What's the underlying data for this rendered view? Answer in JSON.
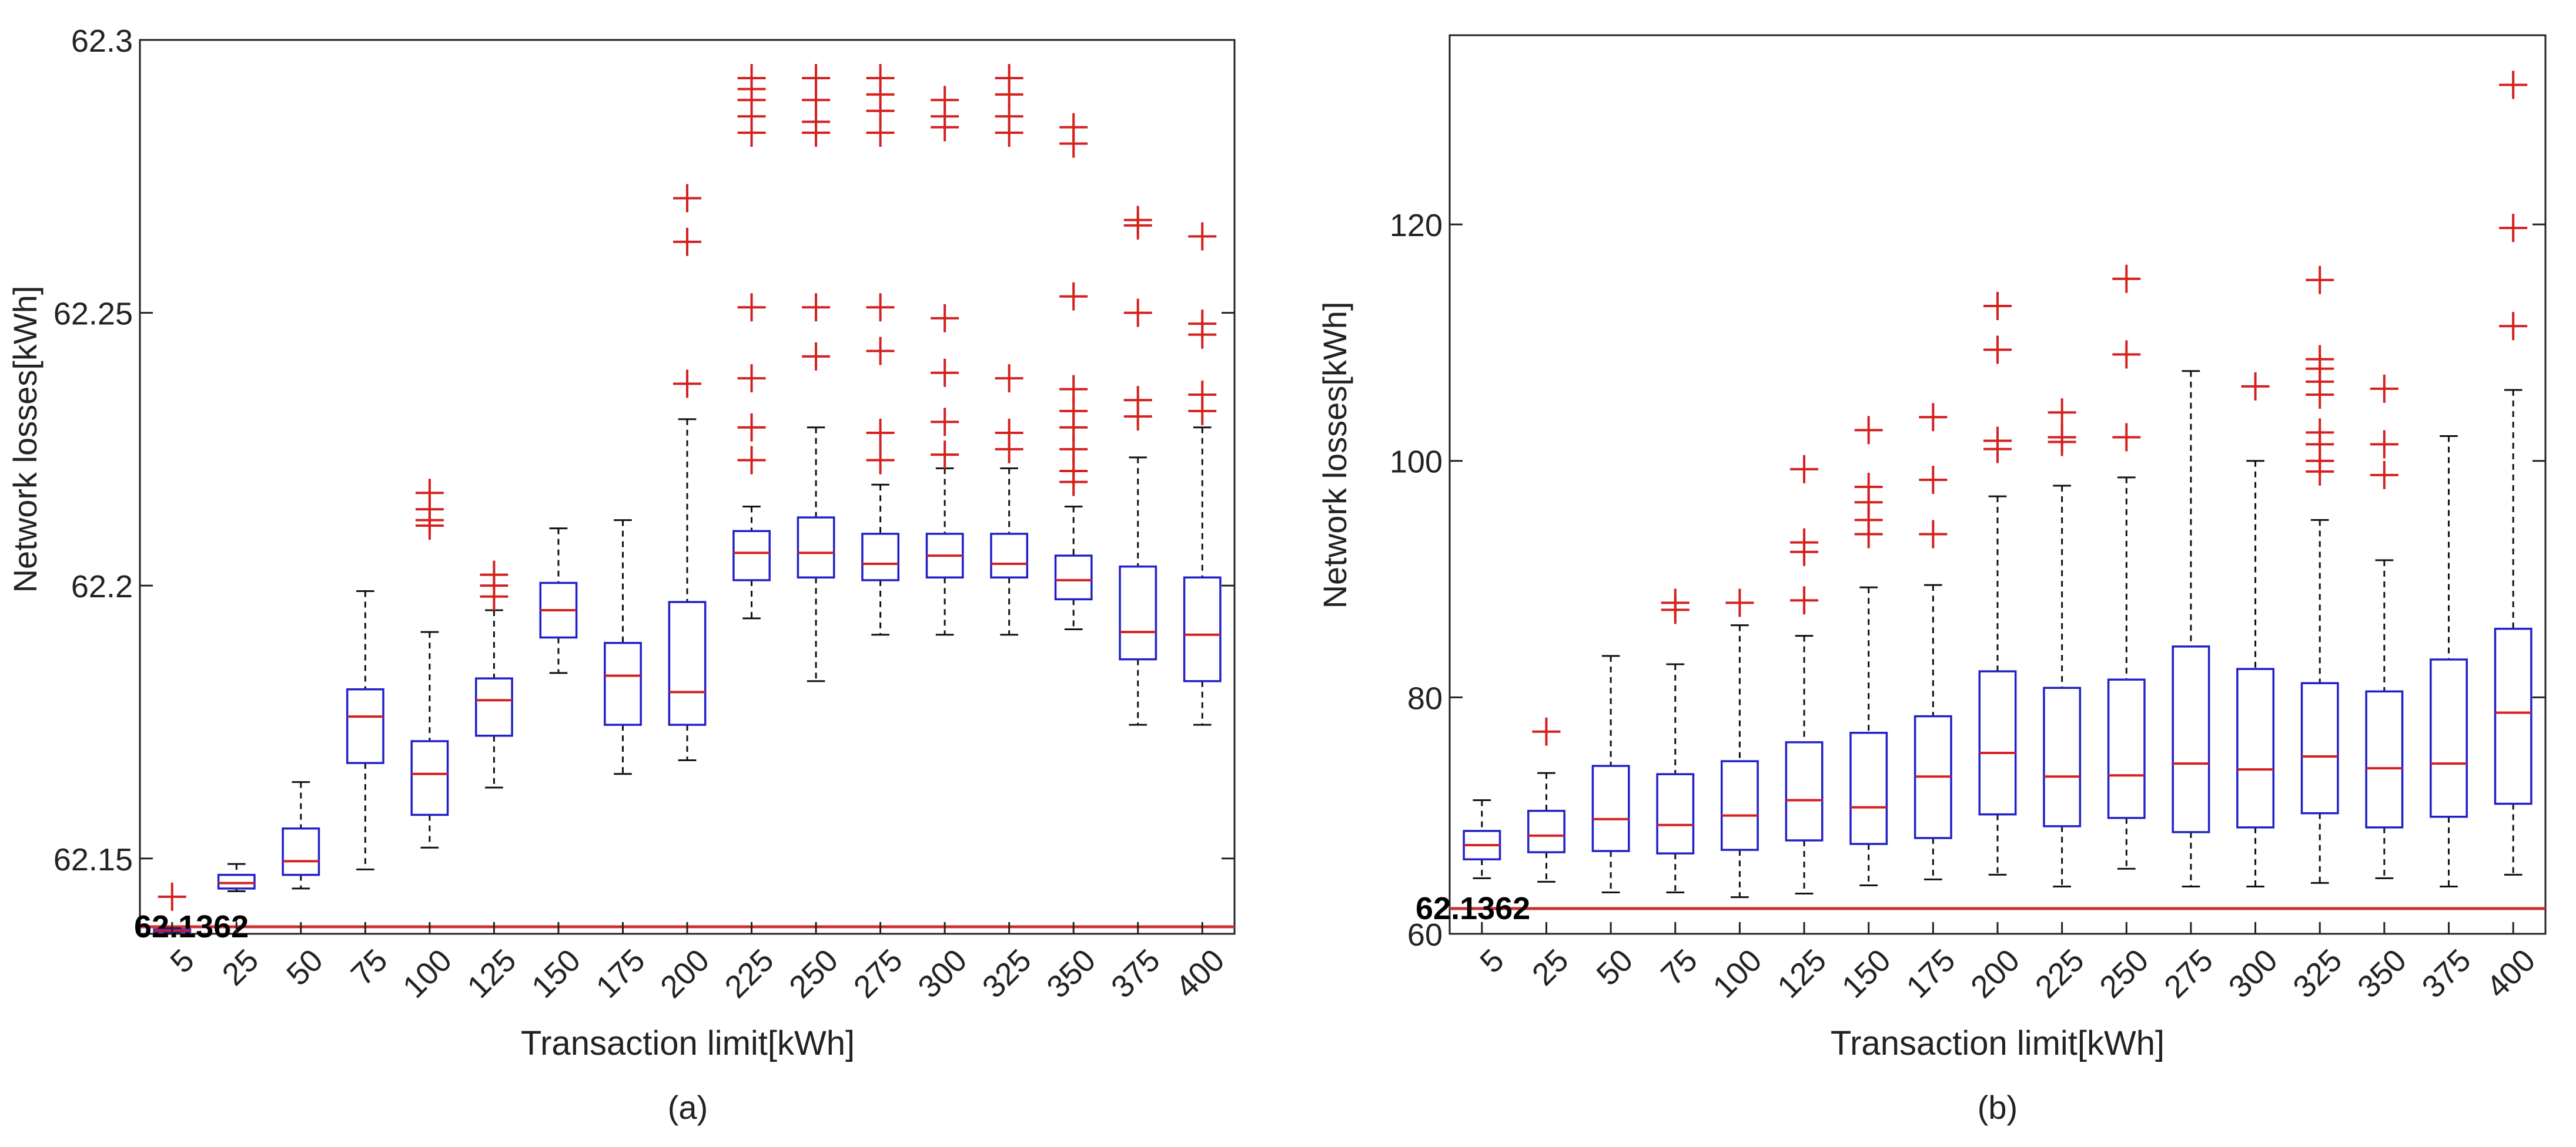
{
  "chart_data": [
    {
      "type": "boxplot",
      "panel_label": "(a)",
      "xlabel": "Transaction limit[kWh]",
      "ylabel": "Network losses[kWh]",
      "ylim": [
        62.1362,
        62.3
      ],
      "yticks": [
        "62.15",
        "62.2",
        "62.25",
        "62.3"
      ],
      "ytick_values": [
        62.15,
        62.2,
        62.25,
        62.3
      ],
      "categories": [
        "5",
        "25",
        "50",
        "75",
        "100",
        "125",
        "150",
        "175",
        "200",
        "225",
        "250",
        "275",
        "300",
        "325",
        "350",
        "375",
        "400"
      ],
      "baseline": {
        "value": 62.1362,
        "label": "62.1362"
      },
      "boxes": [
        {
          "lw": 62.1365,
          "q1": 62.1366,
          "med": 62.1368,
          "q3": 62.137,
          "uw": 62.1372,
          "outliers": [
            62.143
          ]
        },
        {
          "lw": 62.144,
          "q1": 62.1445,
          "med": 62.1455,
          "q3": 62.147,
          "uw": 62.149,
          "outliers": []
        },
        {
          "lw": 62.1445,
          "q1": 62.147,
          "med": 62.1495,
          "q3": 62.1555,
          "uw": 62.164,
          "outliers": []
        },
        {
          "lw": 62.148,
          "q1": 62.1675,
          "med": 62.176,
          "q3": 62.181,
          "uw": 62.199,
          "outliers": []
        },
        {
          "lw": 62.152,
          "q1": 62.158,
          "med": 62.1655,
          "q3": 62.1715,
          "uw": 62.1915,
          "outliers": [
            62.211,
            62.212,
            62.214,
            62.217
          ]
        },
        {
          "lw": 62.163,
          "q1": 62.1725,
          "med": 62.179,
          "q3": 62.183,
          "uw": 62.1955,
          "outliers": [
            62.198,
            62.2,
            62.202
          ]
        },
        {
          "lw": 62.184,
          "q1": 62.1905,
          "med": 62.1955,
          "q3": 62.2005,
          "uw": 62.2105,
          "outliers": []
        },
        {
          "lw": 62.1655,
          "q1": 62.1745,
          "med": 62.1835,
          "q3": 62.1895,
          "uw": 62.212,
          "outliers": []
        },
        {
          "lw": 62.168,
          "q1": 62.1745,
          "med": 62.1805,
          "q3": 62.197,
          "uw": 62.2305,
          "outliers": [
            62.237,
            62.263,
            62.271
          ]
        },
        {
          "lw": 62.194,
          "q1": 62.201,
          "med": 62.206,
          "q3": 62.21,
          "uw": 62.2145,
          "outliers": [
            62.223,
            62.229,
            62.238,
            62.251,
            62.283,
            62.286,
            62.289,
            62.291,
            62.293
          ]
        },
        {
          "lw": 62.1825,
          "q1": 62.2015,
          "med": 62.206,
          "q3": 62.2125,
          "uw": 62.229,
          "outliers": [
            62.242,
            62.251,
            62.283,
            62.285,
            62.289,
            62.293
          ]
        },
        {
          "lw": 62.191,
          "q1": 62.201,
          "med": 62.204,
          "q3": 62.2095,
          "uw": 62.2185,
          "outliers": [
            62.223,
            62.228,
            62.243,
            62.251,
            62.283,
            62.287,
            62.29,
            62.293
          ]
        },
        {
          "lw": 62.191,
          "q1": 62.2015,
          "med": 62.2055,
          "q3": 62.2095,
          "uw": 62.2215,
          "outliers": [
            62.224,
            62.23,
            62.239,
            62.249,
            62.284,
            62.286,
            62.289
          ]
        },
        {
          "lw": 62.191,
          "q1": 62.2015,
          "med": 62.204,
          "q3": 62.2095,
          "uw": 62.2215,
          "outliers": [
            62.225,
            62.228,
            62.238,
            62.283,
            62.286,
            62.29,
            62.293
          ]
        },
        {
          "lw": 62.192,
          "q1": 62.1975,
          "med": 62.201,
          "q3": 62.2055,
          "uw": 62.2145,
          "outliers": [
            62.219,
            62.221,
            62.225,
            62.229,
            62.232,
            62.236,
            62.253,
            62.281,
            62.284
          ]
        },
        {
          "lw": 62.1745,
          "q1": 62.1865,
          "med": 62.1915,
          "q3": 62.2035,
          "uw": 62.2235,
          "outliers": [
            62.231,
            62.234,
            62.25,
            62.266,
            62.267
          ]
        },
        {
          "lw": 62.1745,
          "q1": 62.1825,
          "med": 62.191,
          "q3": 62.2015,
          "uw": 62.229,
          "outliers": [
            62.232,
            62.235,
            62.246,
            62.248,
            62.264
          ]
        }
      ]
    },
    {
      "type": "boxplot",
      "panel_label": "(b)",
      "xlabel": "Transaction limit[kWh]",
      "ylabel": "Network losses[kWh]",
      "ylim": [
        60,
        136
      ],
      "yticks": [
        "60",
        "80",
        "100",
        "120"
      ],
      "ytick_values": [
        60,
        80,
        100,
        120
      ],
      "categories": [
        "5",
        "25",
        "50",
        "75",
        "100",
        "125",
        "150",
        "175",
        "200",
        "225",
        "250",
        "275",
        "300",
        "325",
        "350",
        "375",
        "400"
      ],
      "baseline": {
        "value": 62.1362,
        "label": "62.1362"
      },
      "boxes": [
        {
          "lw": 64.7,
          "q1": 66.3,
          "med": 67.5,
          "q3": 68.7,
          "uw": 71.3,
          "outliers": []
        },
        {
          "lw": 64.4,
          "q1": 66.9,
          "med": 68.3,
          "q3": 70.4,
          "uw": 73.6,
          "outliers": [
            77.1
          ]
        },
        {
          "lw": 63.5,
          "q1": 67.0,
          "med": 69.7,
          "q3": 74.2,
          "uw": 83.5,
          "outliers": []
        },
        {
          "lw": 63.5,
          "q1": 66.8,
          "med": 69.2,
          "q3": 73.5,
          "uw": 82.8,
          "outliers": [
            87.4,
            88.0
          ]
        },
        {
          "lw": 63.1,
          "q1": 67.1,
          "med": 70.0,
          "q3": 74.6,
          "uw": 86.1,
          "outliers": [
            88.0
          ]
        },
        {
          "lw": 63.4,
          "q1": 67.9,
          "med": 71.3,
          "q3": 76.2,
          "uw": 85.2,
          "outliers": [
            88.2,
            92.3,
            93.1,
            99.3
          ]
        },
        {
          "lw": 64.1,
          "q1": 67.6,
          "med": 70.7,
          "q3": 77.0,
          "uw": 89.3,
          "outliers": [
            93.8,
            95.0,
            96.5,
            97.8,
            102.6
          ]
        },
        {
          "lw": 64.6,
          "q1": 68.1,
          "med": 73.3,
          "q3": 78.4,
          "uw": 89.5,
          "outliers": [
            93.8,
            98.4,
            103.7
          ]
        },
        {
          "lw": 65.0,
          "q1": 70.1,
          "med": 75.3,
          "q3": 82.2,
          "uw": 97.0,
          "outliers": [
            101.0,
            101.7,
            109.4,
            113.1
          ]
        },
        {
          "lw": 64.0,
          "q1": 69.1,
          "med": 73.3,
          "q3": 80.8,
          "uw": 97.9,
          "outliers": [
            101.6,
            102.0,
            104.1
          ]
        },
        {
          "lw": 65.5,
          "q1": 69.8,
          "med": 73.4,
          "q3": 81.5,
          "uw": 98.6,
          "outliers": [
            102.0,
            109.0,
            115.4
          ]
        },
        {
          "lw": 64.0,
          "q1": 68.6,
          "med": 74.4,
          "q3": 84.3,
          "uw": 107.6,
          "outliers": []
        },
        {
          "lw": 64.0,
          "q1": 69.0,
          "med": 73.9,
          "q3": 82.4,
          "uw": 100.0,
          "outliers": [
            106.3
          ]
        },
        {
          "lw": 64.3,
          "q1": 70.2,
          "med": 75.0,
          "q3": 81.2,
          "uw": 95.0,
          "outliers": [
            99.1,
            100.0,
            101.4,
            102.4,
            105.6,
            106.7,
            107.8,
            108.6,
            115.3
          ]
        },
        {
          "lw": 64.7,
          "q1": 69.0,
          "med": 74.0,
          "q3": 80.5,
          "uw": 91.6,
          "outliers": [
            98.8,
            101.4,
            106.1
          ]
        },
        {
          "lw": 64.0,
          "q1": 69.9,
          "med": 74.4,
          "q3": 83.2,
          "uw": 102.1,
          "outliers": []
        },
        {
          "lw": 65.0,
          "q1": 71.0,
          "med": 78.7,
          "q3": 85.8,
          "uw": 106.0,
          "outliers": [
            111.4,
            119.7,
            131.8
          ]
        }
      ]
    }
  ],
  "colors": {
    "box": "#2020c8",
    "median": "#d42020",
    "outlier": "#d42020",
    "whisker": "#111111",
    "baseline": "#cc3030",
    "axis": "#222222"
  }
}
